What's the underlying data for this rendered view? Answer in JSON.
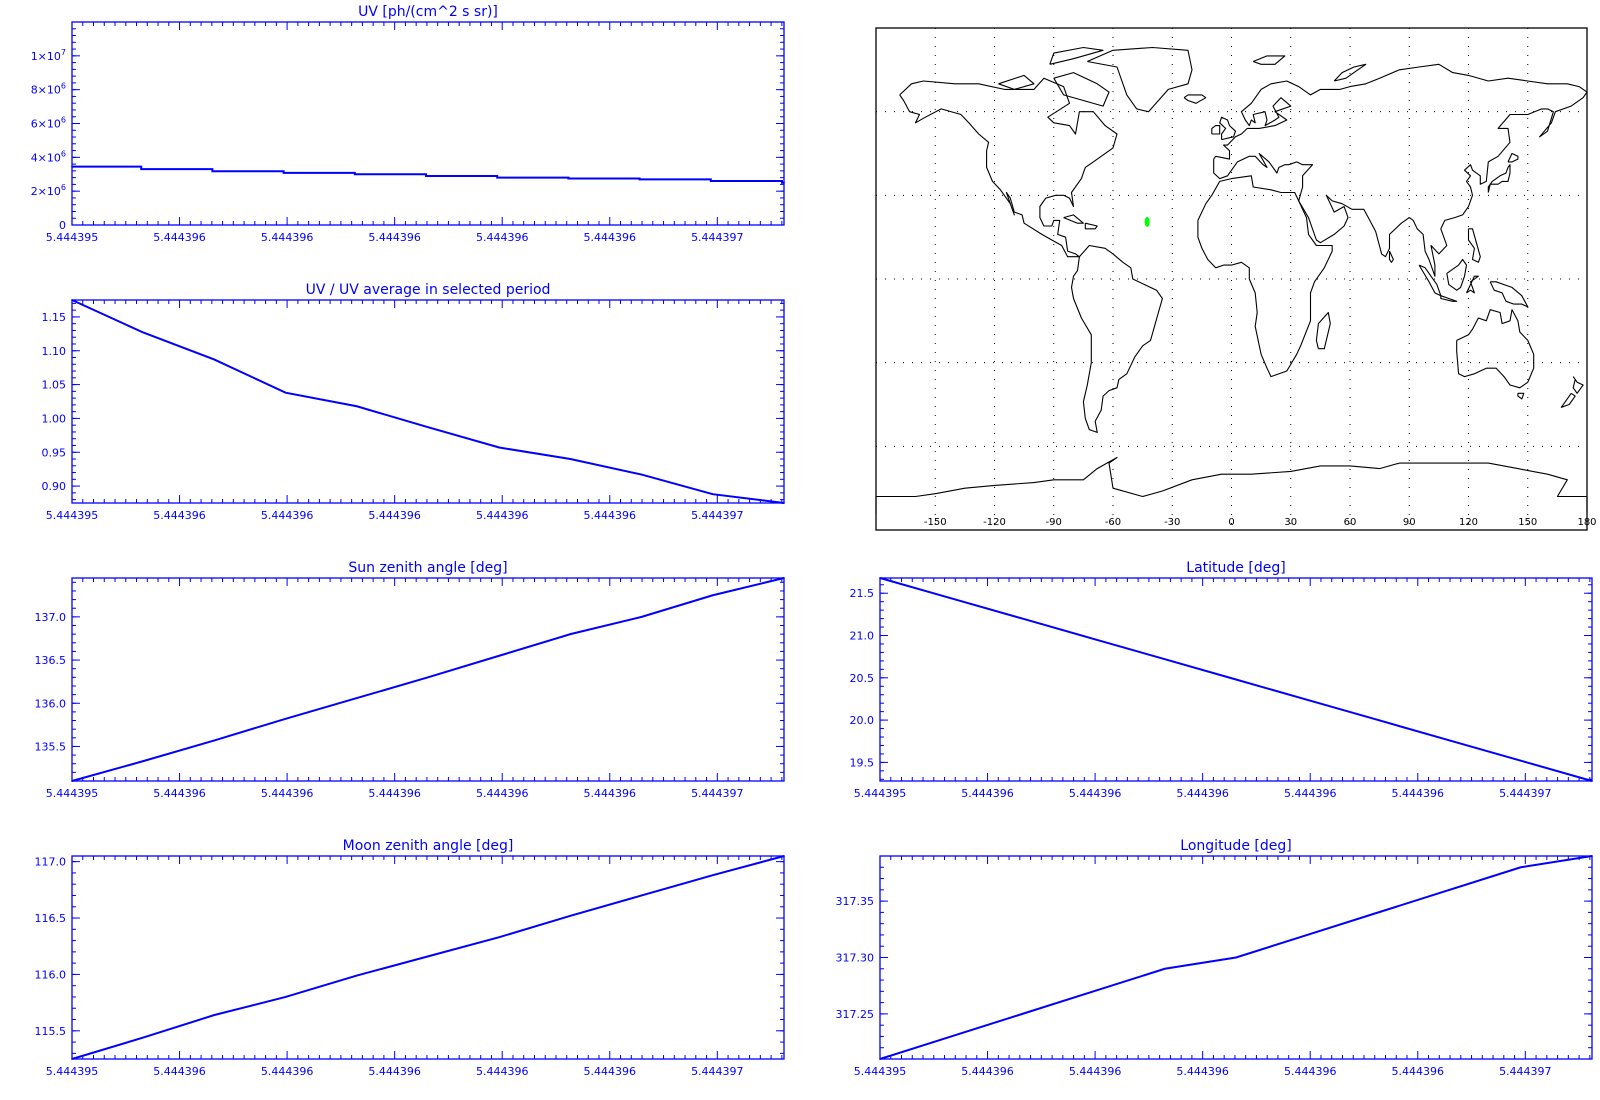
{
  "colors": {
    "axis": "#0000ff",
    "series": "#0000ff",
    "coast": "#000000",
    "marker": "#00ff00",
    "background": "#ffffff"
  },
  "chart_data": [
    {
      "id": "uv",
      "type": "line",
      "title": "UV [ph/(cm^2 s sr)]",
      "step": true,
      "x_tick_labels": [
        "5.444395",
        "5.444396",
        "5.444396",
        "5.444396",
        "5.444396",
        "5.444396",
        "5.444397"
      ],
      "y_ticks": [
        0,
        2000000,
        4000000,
        6000000,
        8000000,
        10000000
      ],
      "y_tick_labels": [
        {
          "mant": "0",
          "exp": ""
        },
        {
          "mant": "2×10",
          "exp": "6"
        },
        {
          "mant": "4×10",
          "exp": "6"
        },
        {
          "mant": "6×10",
          "exp": "6"
        },
        {
          "mant": "8×10",
          "exp": "6"
        },
        {
          "mant": "1×10",
          "exp": "7"
        }
      ],
      "ylim": [
        0,
        12000000
      ],
      "values": [
        3450000,
        3300000,
        3180000,
        3080000,
        3000000,
        2900000,
        2800000,
        2750000,
        2700000,
        2600000,
        2500000
      ]
    },
    {
      "id": "uv-ratio",
      "type": "line",
      "title": "UV / UV average in selected period",
      "x_tick_labels": [
        "5.444395",
        "5.444396",
        "5.444396",
        "5.444396",
        "5.444396",
        "5.444396",
        "5.444397"
      ],
      "y_ticks": [
        0.9,
        0.95,
        1.0,
        1.05,
        1.1,
        1.15
      ],
      "y_tick_labels": [
        "0.90",
        "0.95",
        "1.00",
        "1.05",
        "1.10",
        "1.15"
      ],
      "ylim": [
        0.875,
        1.175
      ],
      "values": [
        1.175,
        1.127,
        1.087,
        1.038,
        1.018,
        0.987,
        0.957,
        0.94,
        0.917,
        0.888,
        0.875
      ]
    },
    {
      "id": "sun-zenith",
      "type": "line",
      "title": "Sun zenith angle [deg]",
      "x_tick_labels": [
        "5.444395",
        "5.444396",
        "5.444396",
        "5.444396",
        "5.444396",
        "5.444396",
        "5.444397"
      ],
      "y_ticks": [
        135.5,
        136.0,
        136.5,
        137.0
      ],
      "y_tick_labels": [
        "135.5",
        "136.0",
        "136.5",
        "137.0"
      ],
      "ylim": [
        135.1,
        137.45
      ],
      "values": [
        135.1,
        135.33,
        135.57,
        135.82,
        136.06,
        136.3,
        136.55,
        136.8,
        137.0,
        137.25,
        137.45
      ]
    },
    {
      "id": "moon-zenith",
      "type": "line",
      "title": "Moon zenith angle [deg]",
      "x_tick_labels": [
        "5.444395",
        "5.444396",
        "5.444396",
        "5.444396",
        "5.444396",
        "5.444396",
        "5.444397"
      ],
      "y_ticks": [
        115.5,
        116.0,
        116.5,
        117.0
      ],
      "y_tick_labels": [
        "115.5",
        "116.0",
        "116.5",
        "117.0"
      ],
      "ylim": [
        115.25,
        117.05
      ],
      "values": [
        115.25,
        115.44,
        115.64,
        115.8,
        115.99,
        116.16,
        116.33,
        116.52,
        116.7,
        116.88,
        117.05
      ]
    },
    {
      "id": "latitude",
      "type": "line",
      "title": "Latitude [deg]",
      "x_tick_labels": [
        "5.444395",
        "5.444396",
        "5.444396",
        "5.444396",
        "5.444396",
        "5.444396",
        "5.444397"
      ],
      "y_ticks": [
        19.5,
        20.0,
        20.5,
        21.0,
        21.5
      ],
      "y_tick_labels": [
        "19.5",
        "20.0",
        "20.5",
        "21.0",
        "21.5"
      ],
      "ylim": [
        19.28,
        21.68
      ],
      "values": [
        21.68,
        21.44,
        21.2,
        20.96,
        20.72,
        20.48,
        20.24,
        20.0,
        19.76,
        19.52,
        19.28
      ]
    },
    {
      "id": "longitude",
      "type": "line",
      "title": "Longitude [deg]",
      "x_tick_labels": [
        "5.444395",
        "5.444396",
        "5.444396",
        "5.444396",
        "5.444396",
        "5.444396",
        "5.444397"
      ],
      "y_ticks": [
        317.25,
        317.3,
        317.35
      ],
      "y_tick_labels": [
        "317.25",
        "317.30",
        "317.35"
      ],
      "ylim": [
        317.21,
        317.39
      ],
      "values": [
        317.21,
        317.23,
        317.25,
        317.27,
        317.29,
        317.3,
        317.32,
        317.34,
        317.36,
        317.38,
        317.39
      ]
    }
  ],
  "map": {
    "x_tick_labels": [
      "-150",
      "-120",
      "-90",
      "-60",
      "-30",
      "0",
      "30",
      "60",
      "90",
      "120",
      "150",
      "180"
    ],
    "x_ticks": [
      -150,
      -120,
      -90,
      -60,
      -30,
      0,
      30,
      60,
      90,
      120,
      150,
      180
    ],
    "lon_range": [
      -180,
      180
    ],
    "lat_range": [
      -90,
      90
    ],
    "grid_lat": [
      -60,
      -30,
      0,
      30,
      60
    ],
    "grid_lon": [
      -150,
      -120,
      -90,
      -60,
      -30,
      0,
      30,
      60,
      90,
      120,
      150
    ],
    "marker": {
      "lon": -42.7,
      "lat": 20.5
    }
  }
}
